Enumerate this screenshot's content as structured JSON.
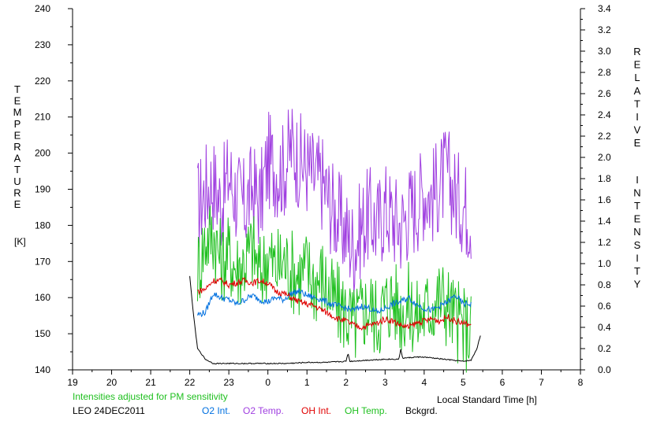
{
  "chart_data": {
    "type": "line",
    "xlabel": "Local Standard Time [h]",
    "ylabel_left": "TEMPERATURE",
    "ylabel_left_unit": "[K]",
    "ylabel_right": "RELATIVE INTENSITY",
    "xlim": [
      19,
      8
    ],
    "x_ticks": [
      "19",
      "20",
      "21",
      "22",
      "23",
      "0",
      "1",
      "2",
      "3",
      "4",
      "5",
      "6",
      "7",
      "8"
    ],
    "ylim_left": [
      140,
      240
    ],
    "y_ticks_left": [
      "240",
      "230",
      "220",
      "210",
      "200",
      "190",
      "180",
      "170",
      "160",
      "150",
      "140"
    ],
    "ylim_right": [
      0.0,
      3.4
    ],
    "y_ticks_right": [
      "3.4",
      "3.2",
      "3.0",
      "2.8",
      "2.6",
      "2.4",
      "2.2",
      "2.0",
      "1.8",
      "1.6",
      "1.4",
      "1.2",
      "1.0",
      "0.8",
      "0.6",
      "0.4",
      "0.2",
      "0.0"
    ],
    "note": "Intensities adjusted for PM sensitivity",
    "station": "LEO 24DEC2011",
    "series": [
      {
        "name": "O2 Int.",
        "color": "#0070e0",
        "axis": "right",
        "x": [
          22.2,
          22.4,
          22.6,
          22.8,
          23.0,
          23.2,
          23.4,
          23.6,
          23.8,
          24.0,
          24.2,
          24.4,
          24.6,
          24.8,
          25.0,
          25.2,
          25.4,
          25.6,
          25.8,
          26.0,
          26.2,
          26.4,
          26.6,
          26.8,
          27.0,
          27.2,
          27.4,
          27.6,
          27.8,
          28.0,
          28.2,
          28.4,
          28.6,
          28.8,
          29.0,
          29.2
        ],
        "y": [
          0.52,
          0.54,
          0.72,
          0.68,
          0.66,
          0.62,
          0.66,
          0.7,
          0.66,
          0.64,
          0.68,
          0.66,
          0.72,
          0.74,
          0.7,
          0.68,
          0.66,
          0.62,
          0.6,
          0.58,
          0.56,
          0.6,
          0.58,
          0.54,
          0.58,
          0.62,
          0.64,
          0.68,
          0.62,
          0.58,
          0.56,
          0.6,
          0.64,
          0.7,
          0.62,
          0.62
        ]
      },
      {
        "name": "O2 Temp.",
        "color": "#a040e0",
        "axis": "left",
        "x": [
          22.2,
          22.4,
          22.6,
          22.8,
          23.0,
          23.2,
          23.4,
          23.6,
          23.8,
          24.0,
          24.2,
          24.4,
          24.6,
          24.8,
          25.0,
          25.2,
          25.4,
          25.6,
          25.8,
          26.0,
          26.2,
          26.4,
          26.6,
          26.8,
          27.0,
          27.2,
          27.4,
          27.6,
          27.8,
          28.0,
          28.2,
          28.4,
          28.6,
          28.8,
          29.0,
          29.2
        ],
        "y": [
          185,
          190,
          192,
          186,
          194,
          188,
          185,
          190,
          186,
          198,
          196,
          195,
          202,
          198,
          196,
          193,
          192,
          186,
          182,
          178,
          174,
          180,
          183,
          180,
          185,
          182,
          180,
          184,
          186,
          190,
          188,
          192,
          194,
          188,
          186,
          183
        ]
      },
      {
        "name": "OH Int.",
        "color": "#e00000",
        "axis": "right",
        "x": [
          22.2,
          22.4,
          22.6,
          22.8,
          23.0,
          23.2,
          23.4,
          23.6,
          23.8,
          24.0,
          24.2,
          24.4,
          24.6,
          24.8,
          25.0,
          25.2,
          25.4,
          25.6,
          25.8,
          26.0,
          26.2,
          26.4,
          26.6,
          26.8,
          27.0,
          27.2,
          27.4,
          27.6,
          27.8,
          28.0,
          28.2,
          28.4,
          28.6,
          28.8,
          29.0,
          29.2
        ],
        "y": [
          0.74,
          0.76,
          0.84,
          0.84,
          0.8,
          0.82,
          0.84,
          0.82,
          0.84,
          0.82,
          0.74,
          0.72,
          0.68,
          0.64,
          0.62,
          0.6,
          0.56,
          0.52,
          0.48,
          0.46,
          0.42,
          0.4,
          0.42,
          0.44,
          0.48,
          0.46,
          0.42,
          0.4,
          0.44,
          0.46,
          0.48,
          0.46,
          0.5,
          0.46,
          0.44,
          0.42
        ]
      },
      {
        "name": "OH Temp.",
        "color": "#20c020",
        "axis": "left",
        "x": [
          22.2,
          22.4,
          22.6,
          22.8,
          23.0,
          23.2,
          23.4,
          23.6,
          23.8,
          24.0,
          24.2,
          24.4,
          24.6,
          24.8,
          25.0,
          25.2,
          25.4,
          25.6,
          25.8,
          26.0,
          26.2,
          26.4,
          26.6,
          26.8,
          27.0,
          27.2,
          27.4,
          27.6,
          27.8,
          28.0,
          28.2,
          28.4,
          28.6,
          28.8,
          29.0,
          29.2
        ],
        "y": [
          168,
          176,
          178,
          170,
          172,
          168,
          170,
          174,
          166,
          172,
          168,
          170,
          168,
          166,
          168,
          164,
          166,
          160,
          158,
          156,
          152,
          156,
          158,
          154,
          158,
          160,
          156,
          158,
          154,
          156,
          158,
          160,
          158,
          154,
          152,
          150
        ]
      },
      {
        "name": "Bckgrd.",
        "color": "#000000",
        "axis": "right",
        "x": [
          22.0,
          22.1,
          22.2,
          22.4,
          22.6,
          23.0,
          23.5,
          24.0,
          24.5,
          25.0,
          25.5,
          26.0,
          26.05,
          26.1,
          26.5,
          27.0,
          27.35,
          27.4,
          27.45,
          27.8,
          28.0,
          28.5,
          29.0,
          29.2,
          29.35,
          29.45
        ],
        "y": [
          0.88,
          0.5,
          0.2,
          0.1,
          0.06,
          0.06,
          0.06,
          0.06,
          0.06,
          0.07,
          0.07,
          0.08,
          0.16,
          0.08,
          0.09,
          0.1,
          0.1,
          0.19,
          0.11,
          0.12,
          0.12,
          0.1,
          0.08,
          0.09,
          0.2,
          0.34
        ]
      }
    ]
  }
}
